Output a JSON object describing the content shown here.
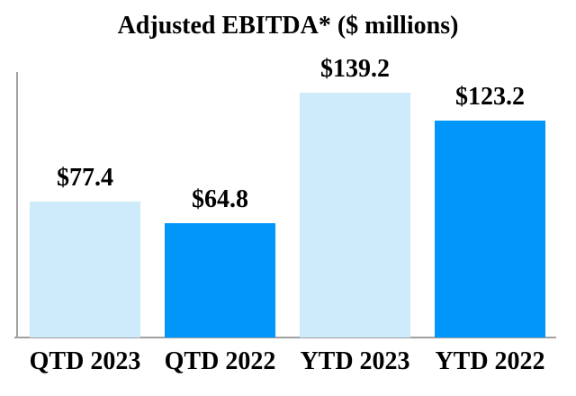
{
  "chart_data": {
    "type": "bar",
    "title": "Adjusted EBITDA* ($ millions)",
    "categories": [
      "QTD 2023",
      "QTD 2022",
      "YTD 2023",
      "YTD 2022"
    ],
    "values": [
      77.4,
      64.8,
      139.2,
      123.2
    ],
    "value_labels": [
      "$77.4",
      "$64.8",
      "$139.2",
      "$123.2"
    ],
    "bar_colors": [
      "#CDEBFA",
      "#0096FA",
      "#CDEBFA",
      "#0096FA"
    ],
    "xlabel": "",
    "ylabel": "",
    "ylim": [
      0,
      150
    ],
    "grid": false,
    "legend": false,
    "y_tick_labels": [],
    "colors": {
      "bar_light": "#CDEBFA",
      "bar_dark": "#0096FA",
      "axis": "#A1A1A1",
      "text": "#000000",
      "background": "#FFFFFF"
    }
  }
}
